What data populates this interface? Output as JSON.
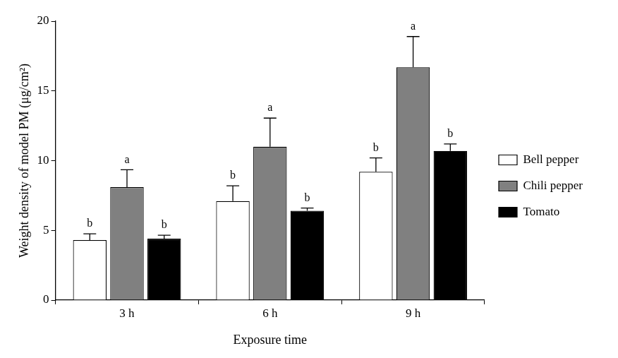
{
  "chart_data": {
    "type": "bar",
    "x_label": "Exposure time",
    "y_label": "Weight density of model PM (μg/cm²)",
    "categories": [
      "3 h",
      "6 h",
      "9 h"
    ],
    "series": [
      {
        "name": "Bell pepper",
        "color": "#ffffff",
        "values": [
          4.3,
          7.1,
          9.2
        ],
        "errors": [
          0.45,
          1.1,
          1.0
        ],
        "letters": [
          "b",
          "b",
          "b"
        ]
      },
      {
        "name": "Chili pepper",
        "color": "#808080",
        "values": [
          8.1,
          11.0,
          16.7
        ],
        "errors": [
          1.25,
          2.05,
          2.2
        ],
        "letters": [
          "a",
          "a",
          "a"
        ]
      },
      {
        "name": "Tomato",
        "color": "#000000",
        "values": [
          4.4,
          6.4,
          10.7
        ],
        "errors": [
          0.25,
          0.2,
          0.5
        ],
        "letters": [
          "b",
          "b",
          "b"
        ]
      }
    ],
    "ylim": [
      0,
      20
    ],
    "yticks": [
      0,
      5,
      10,
      15,
      20
    ],
    "grid": false,
    "legend": "right"
  }
}
